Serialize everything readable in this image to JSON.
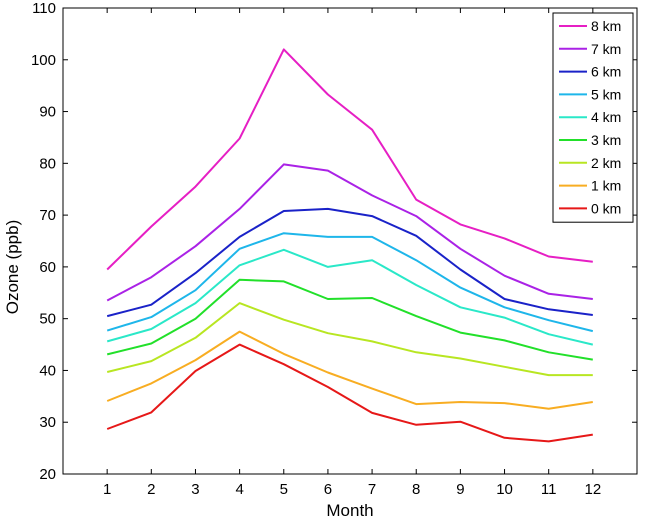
{
  "chart_data": {
    "type": "line",
    "xlabel": "Month",
    "ylabel": "Ozone (ppb)",
    "xlim": [
      0,
      13
    ],
    "ylim": [
      20,
      110
    ],
    "x": [
      1,
      2,
      3,
      4,
      5,
      6,
      7,
      8,
      9,
      10,
      11,
      12
    ],
    "x_ticks": [
      "1",
      "2",
      "3",
      "4",
      "5",
      "6",
      "7",
      "8",
      "9",
      "10",
      "11",
      "12"
    ],
    "y_ticks": [
      "20",
      "30",
      "40",
      "50",
      "60",
      "70",
      "80",
      "90",
      "100",
      "110"
    ],
    "grid": false,
    "legend_position": "top-right",
    "series": [
      {
        "name": "8 km",
        "color": "#e61fc4",
        "values": [
          59.5,
          67.8,
          75.5,
          84.8,
          102.0,
          93.3,
          86.5,
          73.0,
          68.2,
          65.5,
          62.0,
          61.0
        ]
      },
      {
        "name": "7 km",
        "color": "#aa22e6",
        "values": [
          53.5,
          58.0,
          64.0,
          71.2,
          79.8,
          78.6,
          73.8,
          69.8,
          63.5,
          58.3,
          54.8,
          53.8
        ]
      },
      {
        "name": "6 km",
        "color": "#1a22c8",
        "values": [
          50.5,
          52.7,
          58.8,
          65.8,
          70.8,
          71.2,
          69.8,
          66.0,
          59.5,
          53.8,
          51.8,
          50.7
        ]
      },
      {
        "name": "5 km",
        "color": "#1eb6ea",
        "values": [
          47.7,
          50.3,
          55.5,
          63.5,
          66.5,
          65.8,
          65.8,
          61.3,
          56.0,
          52.2,
          49.7,
          47.6
        ]
      },
      {
        "name": "4 km",
        "color": "#2ae8c8",
        "values": [
          45.6,
          48.0,
          53.0,
          60.3,
          63.3,
          60.0,
          61.3,
          56.5,
          52.2,
          50.2,
          47.0,
          45.0
        ]
      },
      {
        "name": "3 km",
        "color": "#22e02a",
        "values": [
          43.1,
          45.2,
          50.0,
          57.5,
          57.2,
          53.8,
          54.0,
          50.5,
          47.3,
          45.8,
          43.5,
          42.1
        ]
      },
      {
        "name": "2 km",
        "color": "#b8e622",
        "values": [
          39.7,
          41.8,
          46.3,
          53.0,
          49.8,
          47.2,
          45.6,
          43.5,
          42.3,
          40.7,
          39.1,
          39.1
        ]
      },
      {
        "name": "1 km",
        "color": "#f8ad22",
        "values": [
          34.1,
          37.5,
          42.0,
          47.5,
          43.2,
          39.6,
          36.5,
          33.5,
          33.9,
          33.7,
          32.6,
          33.9
        ]
      },
      {
        "name": "0 km",
        "color": "#e61818",
        "values": [
          28.7,
          31.9,
          39.9,
          45.0,
          41.2,
          36.8,
          31.8,
          29.5,
          30.1,
          27.0,
          26.3,
          27.6
        ]
      }
    ]
  }
}
